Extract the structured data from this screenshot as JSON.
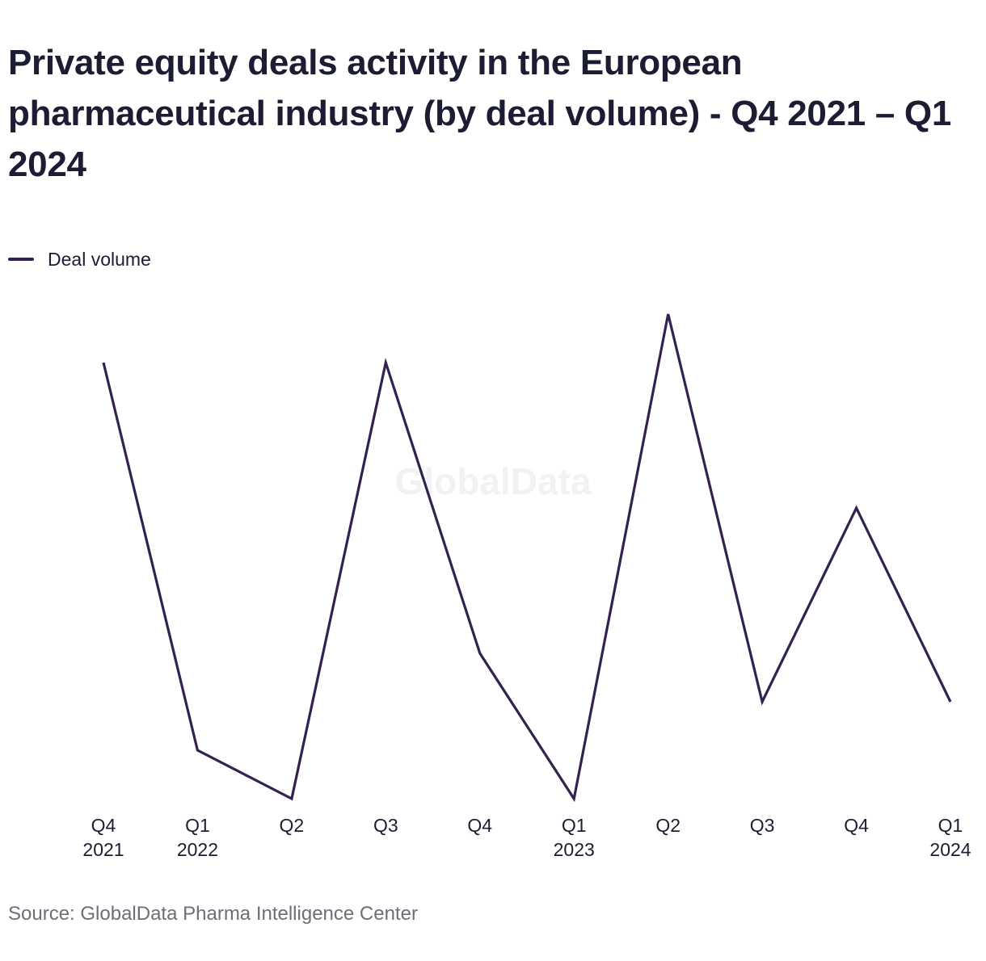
{
  "title": "Private equity deals activity in the European pharmaceutical industry (by deal volume) - Q4 2021 – Q1 2024",
  "legend": {
    "label": "Deal volume"
  },
  "watermark": "GlobalData",
  "source": "Source: GlobalData Pharma Intelligence Center",
  "colors": {
    "line": "#33224f",
    "text": "#1c1c33",
    "source": "#6e6e78"
  },
  "chart_data": {
    "type": "line",
    "title": "Private equity deals activity in the European pharmaceutical industry (by deal volume) - Q4 2021 – Q1 2024",
    "xlabel": "",
    "ylabel": "",
    "grid": false,
    "legend_position": "top-left",
    "categories": [
      [
        "Q4",
        "2021"
      ],
      [
        "Q1",
        "2022"
      ],
      [
        "Q2",
        ""
      ],
      [
        "Q3",
        ""
      ],
      [
        "Q4",
        ""
      ],
      [
        "Q1",
        "2023"
      ],
      [
        "Q2",
        ""
      ],
      [
        "Q3",
        ""
      ],
      [
        "Q4",
        ""
      ],
      [
        "Q1",
        "2024"
      ]
    ],
    "series": [
      {
        "name": "Deal volume",
        "values": [
          20,
          12,
          11,
          20,
          14,
          11,
          21,
          13,
          17,
          13
        ]
      }
    ],
    "ylim": [
      11,
      21
    ]
  }
}
